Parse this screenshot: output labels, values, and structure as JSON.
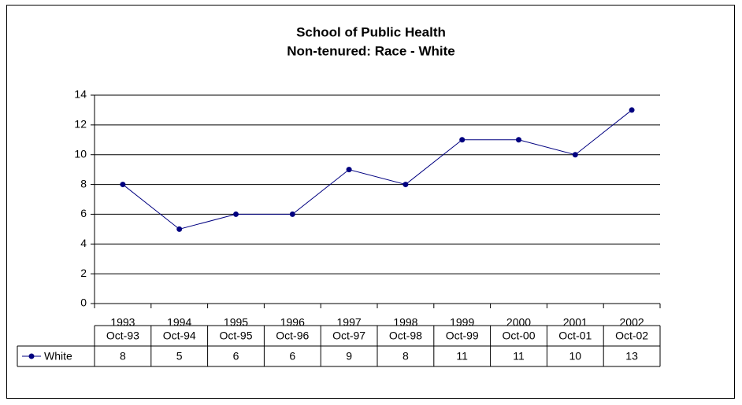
{
  "chart_data": {
    "type": "line",
    "title": [
      "School of Public Health",
      "Non-tenured: Race - White"
    ],
    "categories": [
      "1993",
      "1994",
      "1995",
      "1996",
      "1997",
      "1998",
      "1999",
      "2000",
      "2001",
      "2002"
    ],
    "series": [
      {
        "name": "White",
        "color": "#000080",
        "values": [
          8,
          5,
          6,
          6,
          9,
          8,
          11,
          11,
          10,
          13
        ]
      }
    ],
    "ylim": [
      0,
      14
    ],
    "yticks": [
      0,
      2,
      4,
      6,
      8,
      10,
      12,
      14
    ],
    "grid": true,
    "data_table": {
      "columns": [
        "Oct-93",
        "Oct-94",
        "Oct-95",
        "Oct-96",
        "Oct-97",
        "Oct-98",
        "Oct-99",
        "Oct-00",
        "Oct-01",
        "Oct-02"
      ]
    }
  }
}
